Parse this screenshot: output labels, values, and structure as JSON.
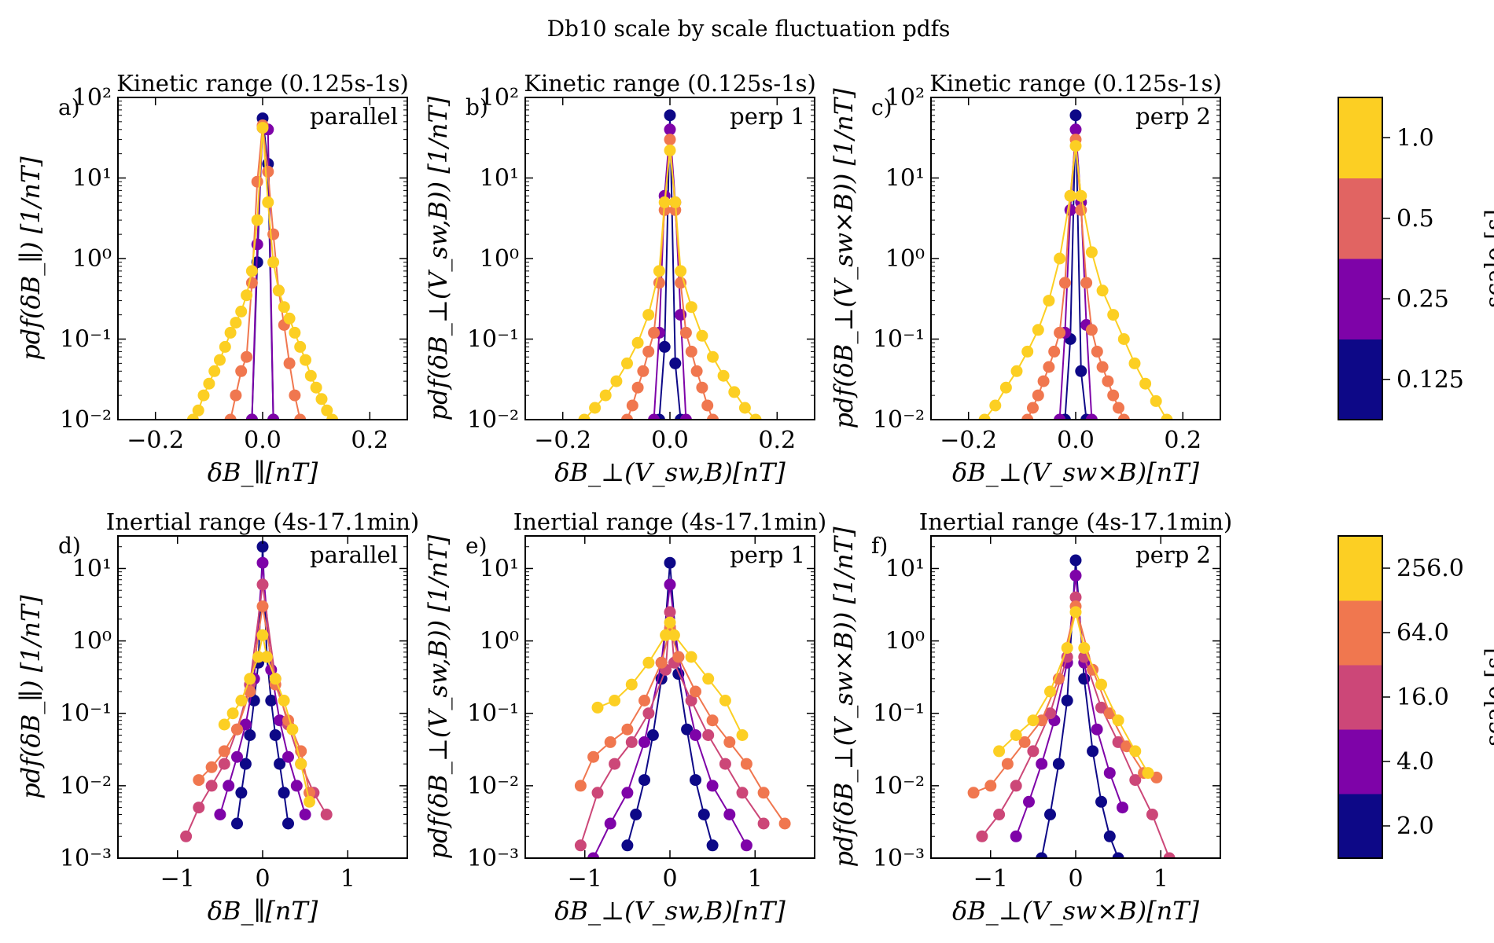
{
  "figure": {
    "suptitle": "Db10 scale by scale fluctuation pdfs",
    "colors": {
      "c0": "#0d0887",
      "c1": "#7e03a8",
      "c2": "#cc4778",
      "c3": "#f0774f",
      "c4": "#fccf23"
    }
  },
  "chart_data": [
    {
      "panel": "a",
      "label": "a)",
      "type": "line",
      "title": "Kinetic range (0.125s-1s)",
      "subtitle": "parallel",
      "xlabel": "δB_∥[nT]",
      "ylabel": "pdf(δB_∥) [1/nT]",
      "xlim": [
        -0.27,
        0.27
      ],
      "ylim_log10": [
        -2,
        2
      ],
      "xticks": [
        "−0.2",
        "0.0",
        "0.2"
      ],
      "yticks": [
        "10⁻²",
        "10⁻¹",
        "10⁰",
        "10¹",
        "10²"
      ],
      "series": [
        {
          "name": "0.125",
          "color": "#0d0887",
          "x": [
            -0.02,
            -0.01,
            0,
            0.01,
            0.02
          ],
          "y": [
            0.01,
            0.9,
            55,
            15,
            0.01
          ]
        },
        {
          "name": "0.25",
          "color": "#7e03a8",
          "x": [
            -0.02,
            -0.01,
            0,
            0.01,
            0.02
          ],
          "y": [
            0.01,
            1.5,
            42,
            40,
            0.01
          ]
        },
        {
          "name": "0.5",
          "color": "#f0774f",
          "x": [
            -0.06,
            -0.05,
            -0.04,
            -0.03,
            -0.02,
            -0.01,
            0,
            0.01,
            0.02,
            0.03,
            0.04,
            0.05,
            0.06,
            0.07
          ],
          "y": [
            0.01,
            0.02,
            0.04,
            0.06,
            0.5,
            9,
            45,
            12,
            2,
            0.4,
            0.15,
            0.05,
            0.02,
            0.01
          ]
        },
        {
          "name": "1.0",
          "color": "#fccf23",
          "x": [
            -0.13,
            -0.12,
            -0.11,
            -0.1,
            -0.09,
            -0.08,
            -0.07,
            -0.06,
            -0.05,
            -0.04,
            -0.03,
            -0.02,
            -0.01,
            0,
            0.01,
            0.02,
            0.03,
            0.04,
            0.05,
            0.06,
            0.07,
            0.08,
            0.09,
            0.1,
            0.11,
            0.12,
            0.13
          ],
          "y": [
            0.01,
            0.013,
            0.02,
            0.028,
            0.04,
            0.055,
            0.08,
            0.12,
            0.16,
            0.22,
            0.35,
            0.7,
            3,
            42,
            5,
            0.9,
            0.4,
            0.25,
            0.18,
            0.12,
            0.08,
            0.055,
            0.035,
            0.025,
            0.018,
            0.013,
            0.01
          ]
        }
      ]
    },
    {
      "panel": "b",
      "label": "b)",
      "type": "line",
      "title": "Kinetic range (0.125s-1s)",
      "subtitle": "perp 1",
      "xlabel": "δB_⊥(V_sw,B)[nT]",
      "ylabel": "pdf(δB_⊥(V_sw,B)) [1/nT]",
      "xlim": [
        -0.27,
        0.27
      ],
      "ylim_log10": [
        -2,
        2
      ],
      "xticks": [
        "−0.2",
        "0.0",
        "0.2"
      ],
      "yticks": [
        "10⁻²",
        "10⁻¹",
        "10⁰",
        "10¹",
        "10²"
      ],
      "series": [
        {
          "name": "0.125",
          "color": "#0d0887",
          "x": [
            -0.02,
            -0.01,
            0,
            0.01,
            0.02
          ],
          "y": [
            0.01,
            0.08,
            60,
            0.05,
            0.01
          ]
        },
        {
          "name": "0.25",
          "color": "#7e03a8",
          "x": [
            -0.03,
            -0.02,
            -0.01,
            0,
            0.01,
            0.02,
            0.03
          ],
          "y": [
            0.01,
            0.12,
            6,
            40,
            5,
            0.2,
            0.01
          ]
        },
        {
          "name": "0.5",
          "color": "#f0774f",
          "x": [
            -0.08,
            -0.07,
            -0.06,
            -0.05,
            -0.04,
            -0.03,
            -0.02,
            -0.01,
            0,
            0.01,
            0.02,
            0.03,
            0.04,
            0.05,
            0.06,
            0.07,
            0.08
          ],
          "y": [
            0.01,
            0.015,
            0.025,
            0.04,
            0.07,
            0.12,
            0.5,
            4,
            30,
            4,
            0.5,
            0.12,
            0.07,
            0.04,
            0.025,
            0.015,
            0.01
          ]
        },
        {
          "name": "1.0",
          "color": "#fccf23",
          "x": [
            -0.16,
            -0.14,
            -0.12,
            -0.1,
            -0.08,
            -0.06,
            -0.04,
            -0.02,
            -0.01,
            0,
            0.01,
            0.02,
            0.04,
            0.06,
            0.08,
            0.1,
            0.12,
            0.14,
            0.16
          ],
          "y": [
            0.01,
            0.014,
            0.02,
            0.03,
            0.05,
            0.09,
            0.2,
            0.7,
            5,
            22,
            5,
            0.7,
            0.25,
            0.11,
            0.06,
            0.035,
            0.022,
            0.014,
            0.01
          ]
        }
      ]
    },
    {
      "panel": "c",
      "label": "c)",
      "type": "line",
      "title": "Kinetic range (0.125s-1s)",
      "subtitle": "perp 2",
      "xlabel": "δB_⊥(V_sw×B)[nT]",
      "ylabel": "pdf(δB_⊥(V_sw×B)) [1/nT]",
      "xlim": [
        -0.27,
        0.27
      ],
      "ylim_log10": [
        -2,
        2
      ],
      "xticks": [
        "−0.2",
        "0.0",
        "0.2"
      ],
      "yticks": [
        "10⁻²",
        "10⁻¹",
        "10⁰",
        "10¹",
        "10²"
      ],
      "series": [
        {
          "name": "0.125",
          "color": "#0d0887",
          "x": [
            -0.02,
            -0.01,
            0,
            0.01,
            0.02
          ],
          "y": [
            0.01,
            0.1,
            60,
            0.04,
            0.01
          ]
        },
        {
          "name": "0.25",
          "color": "#7e03a8",
          "x": [
            -0.03,
            -0.02,
            -0.01,
            0,
            0.01,
            0.02,
            0.03
          ],
          "y": [
            0.01,
            0.12,
            4,
            40,
            5,
            0.15,
            0.01
          ]
        },
        {
          "name": "0.5",
          "color": "#f0774f",
          "x": [
            -0.09,
            -0.08,
            -0.07,
            -0.06,
            -0.05,
            -0.04,
            -0.03,
            -0.02,
            -0.01,
            0,
            0.01,
            0.02,
            0.03,
            0.04,
            0.05,
            0.06,
            0.07,
            0.08,
            0.09
          ],
          "y": [
            0.01,
            0.014,
            0.02,
            0.03,
            0.045,
            0.07,
            0.12,
            0.5,
            6,
            30,
            4,
            0.5,
            0.13,
            0.07,
            0.045,
            0.03,
            0.02,
            0.014,
            0.01
          ]
        },
        {
          "name": "1.0",
          "color": "#fccf23",
          "x": [
            -0.17,
            -0.15,
            -0.13,
            -0.11,
            -0.09,
            -0.07,
            -0.05,
            -0.03,
            -0.01,
            0,
            0.01,
            0.03,
            0.05,
            0.07,
            0.09,
            0.11,
            0.13,
            0.15,
            0.17
          ],
          "y": [
            0.01,
            0.015,
            0.025,
            0.04,
            0.07,
            0.13,
            0.3,
            1,
            6,
            25,
            6,
            1.2,
            0.4,
            0.2,
            0.1,
            0.05,
            0.028,
            0.017,
            0.01
          ]
        }
      ]
    },
    {
      "panel": "d",
      "label": "d)",
      "type": "line",
      "title": "Inertial range (4s-17.1min)",
      "subtitle": "parallel",
      "xlabel": "δB_∥[nT]",
      "ylabel": "pdf(δB_∥) [1/nT]",
      "xlim": [
        -1.7,
        1.7
      ],
      "ylim_log10": [
        -3,
        1.45
      ],
      "xticks": [
        "−1",
        "0",
        "1"
      ],
      "yticks": [
        "10⁻³",
        "10⁻²",
        "10⁻¹",
        "10⁰",
        "10¹"
      ],
      "series": [
        {
          "name": "2.0",
          "color": "#0d0887",
          "x": [
            -0.3,
            -0.25,
            -0.2,
            -0.15,
            -0.1,
            -0.05,
            0,
            0.05,
            0.1,
            0.15,
            0.2,
            0.25,
            0.3
          ],
          "y": [
            0.003,
            0.008,
            0.02,
            0.05,
            0.15,
            0.5,
            20,
            0.6,
            0.15,
            0.05,
            0.02,
            0.008,
            0.003
          ]
        },
        {
          "name": "4.0",
          "color": "#7e03a8",
          "x": [
            -0.5,
            -0.4,
            -0.3,
            -0.2,
            -0.1,
            0,
            0.1,
            0.2,
            0.3,
            0.4,
            0.5
          ],
          "y": [
            0.004,
            0.01,
            0.025,
            0.07,
            0.3,
            12,
            0.4,
            0.08,
            0.025,
            0.01,
            0.004
          ]
        },
        {
          "name": "16.0",
          "color": "#cc4778",
          "x": [
            -0.9,
            -0.75,
            -0.6,
            -0.45,
            -0.3,
            -0.15,
            0,
            0.15,
            0.3,
            0.45,
            0.6,
            0.75
          ],
          "y": [
            0.002,
            0.005,
            0.01,
            0.02,
            0.06,
            0.25,
            6,
            0.3,
            0.07,
            0.02,
            0.008,
            0.004
          ]
        },
        {
          "name": "64.0",
          "color": "#f0774f",
          "x": [
            -0.75,
            -0.6,
            -0.45,
            -0.3,
            -0.15,
            0,
            0.15,
            0.3,
            0.45,
            0.55
          ],
          "y": [
            0.012,
            0.018,
            0.03,
            0.06,
            0.2,
            3,
            0.25,
            0.08,
            0.03,
            0.008
          ]
        },
        {
          "name": "256.0",
          "color": "#fccf23",
          "x": [
            -0.45,
            -0.35,
            -0.25,
            -0.15,
            -0.05,
            0,
            0.05,
            0.15,
            0.25,
            0.35,
            0.45,
            0.55
          ],
          "y": [
            0.07,
            0.1,
            0.15,
            0.3,
            0.6,
            1.2,
            0.6,
            0.3,
            0.15,
            0.06,
            0.02,
            0.006
          ]
        }
      ]
    },
    {
      "panel": "e",
      "label": "e)",
      "type": "line",
      "title": "Inertial range (4s-17.1min)",
      "subtitle": "perp 1",
      "xlabel": "δB_⊥(V_sw,B)[nT]",
      "ylabel": "pdf(δB_⊥(V_sw,B)) [1/nT]",
      "xlim": [
        -1.7,
        1.7
      ],
      "ylim_log10": [
        -3,
        1.45
      ],
      "xticks": [
        "−1",
        "0",
        "1"
      ],
      "yticks": [
        "10⁻³",
        "10⁻²",
        "10⁻¹",
        "10⁰",
        "10¹"
      ],
      "series": [
        {
          "name": "2.0",
          "color": "#0d0887",
          "x": [
            -0.5,
            -0.4,
            -0.3,
            -0.2,
            -0.1,
            0,
            0.1,
            0.2,
            0.3,
            0.4,
            0.5
          ],
          "y": [
            0.0015,
            0.004,
            0.012,
            0.05,
            0.3,
            12,
            0.35,
            0.06,
            0.012,
            0.004,
            0.0015
          ]
        },
        {
          "name": "4.0",
          "color": "#7e03a8",
          "x": [
            -0.9,
            -0.7,
            -0.5,
            -0.3,
            -0.1,
            0,
            0.1,
            0.3,
            0.5,
            0.7,
            0.9
          ],
          "y": [
            0.001,
            0.003,
            0.008,
            0.04,
            0.5,
            6,
            0.6,
            0.05,
            0.01,
            0.004,
            0.0015
          ]
        },
        {
          "name": "16.0",
          "color": "#cc4778",
          "x": [
            -1.05,
            -0.85,
            -0.65,
            -0.45,
            -0.25,
            -0.05,
            0,
            0.05,
            0.25,
            0.45,
            0.65,
            0.85,
            1.1
          ],
          "y": [
            0.0015,
            0.008,
            0.02,
            0.04,
            0.1,
            0.4,
            2.5,
            0.5,
            0.15,
            0.05,
            0.02,
            0.008,
            0.003
          ]
        },
        {
          "name": "64.0",
          "color": "#f0774f",
          "x": [
            -1.05,
            -0.9,
            -0.7,
            -0.5,
            -0.3,
            -0.1,
            0,
            0.1,
            0.3,
            0.5,
            0.7,
            0.9,
            1.1,
            1.35
          ],
          "y": [
            0.01,
            0.025,
            0.04,
            0.06,
            0.15,
            0.5,
            1.5,
            0.6,
            0.2,
            0.08,
            0.04,
            0.02,
            0.008,
            0.003
          ]
        },
        {
          "name": "256.0",
          "color": "#fccf23",
          "x": [
            -0.85,
            -0.65,
            -0.45,
            -0.25,
            -0.05,
            0,
            0.05,
            0.25,
            0.45,
            0.65,
            0.85
          ],
          "y": [
            0.12,
            0.15,
            0.25,
            0.5,
            1.2,
            1.8,
            1.2,
            0.6,
            0.3,
            0.15,
            0.05
          ]
        }
      ]
    },
    {
      "panel": "f",
      "label": "f)",
      "type": "line",
      "title": "Inertial range (4s-17.1min)",
      "subtitle": "perp 2",
      "xlabel": "δB_⊥(V_sw×B)[nT]",
      "ylabel": "pdf(δB_⊥(V_sw×B)) [1/nT]",
      "xlim": [
        -1.7,
        1.7
      ],
      "ylim_log10": [
        -3,
        1.45
      ],
      "xticks": [
        "−1",
        "0",
        "1"
      ],
      "yticks": [
        "10⁻³",
        "10⁻²",
        "10⁻¹",
        "10⁰",
        "10¹"
      ],
      "series": [
        {
          "name": "2.0",
          "color": "#0d0887",
          "x": [
            -0.4,
            -0.3,
            -0.2,
            -0.1,
            0,
            0.1,
            0.2,
            0.3,
            0.4,
            0.5
          ],
          "y": [
            0.001,
            0.004,
            0.02,
            0.15,
            13,
            0.3,
            0.03,
            0.006,
            0.002,
            0.001
          ]
        },
        {
          "name": "4.0",
          "color": "#7e03a8",
          "x": [
            -0.7,
            -0.55,
            -0.4,
            -0.25,
            -0.1,
            0,
            0.1,
            0.25,
            0.4,
            0.55
          ],
          "y": [
            0.002,
            0.006,
            0.02,
            0.08,
            0.5,
            8,
            0.5,
            0.06,
            0.015,
            0.005
          ]
        },
        {
          "name": "16.0",
          "color": "#cc4778",
          "x": [
            -1.1,
            -0.9,
            -0.7,
            -0.5,
            -0.3,
            -0.1,
            0,
            0.1,
            0.3,
            0.5,
            0.7,
            0.9,
            1.1
          ],
          "y": [
            0.002,
            0.004,
            0.01,
            0.03,
            0.1,
            0.6,
            4,
            0.6,
            0.12,
            0.04,
            0.012,
            0.004,
            0.001
          ]
        },
        {
          "name": "64.0",
          "color": "#f0774f",
          "x": [
            -1.2,
            -1.0,
            -0.8,
            -0.6,
            -0.4,
            -0.2,
            0,
            0.2,
            0.4,
            0.6,
            0.8,
            0.95
          ],
          "y": [
            0.008,
            0.01,
            0.02,
            0.04,
            0.08,
            0.3,
            3,
            0.4,
            0.1,
            0.035,
            0.015,
            0.013
          ]
        },
        {
          "name": "256.0",
          "color": "#fccf23",
          "x": [
            -0.9,
            -0.7,
            -0.5,
            -0.3,
            -0.1,
            0,
            0.1,
            0.3,
            0.5,
            0.7,
            0.85
          ],
          "y": [
            0.03,
            0.05,
            0.08,
            0.2,
            0.8,
            2.5,
            0.8,
            0.25,
            0.08,
            0.03,
            0.015
          ]
        }
      ]
    }
  ],
  "colorbars": [
    {
      "label": "scale [s]",
      "ticks": [
        "0.125",
        "0.25",
        "0.5",
        "1.0"
      ],
      "colors": [
        "#0d0887",
        "#7e03a8",
        "#e16462",
        "#fccf23"
      ]
    },
    {
      "label": "scale [s]",
      "ticks": [
        "2.0",
        "4.0",
        "16.0",
        "64.0",
        "256.0"
      ],
      "colors": [
        "#0d0887",
        "#7e03a8",
        "#cc4778",
        "#f0774f",
        "#fccf23"
      ]
    }
  ]
}
